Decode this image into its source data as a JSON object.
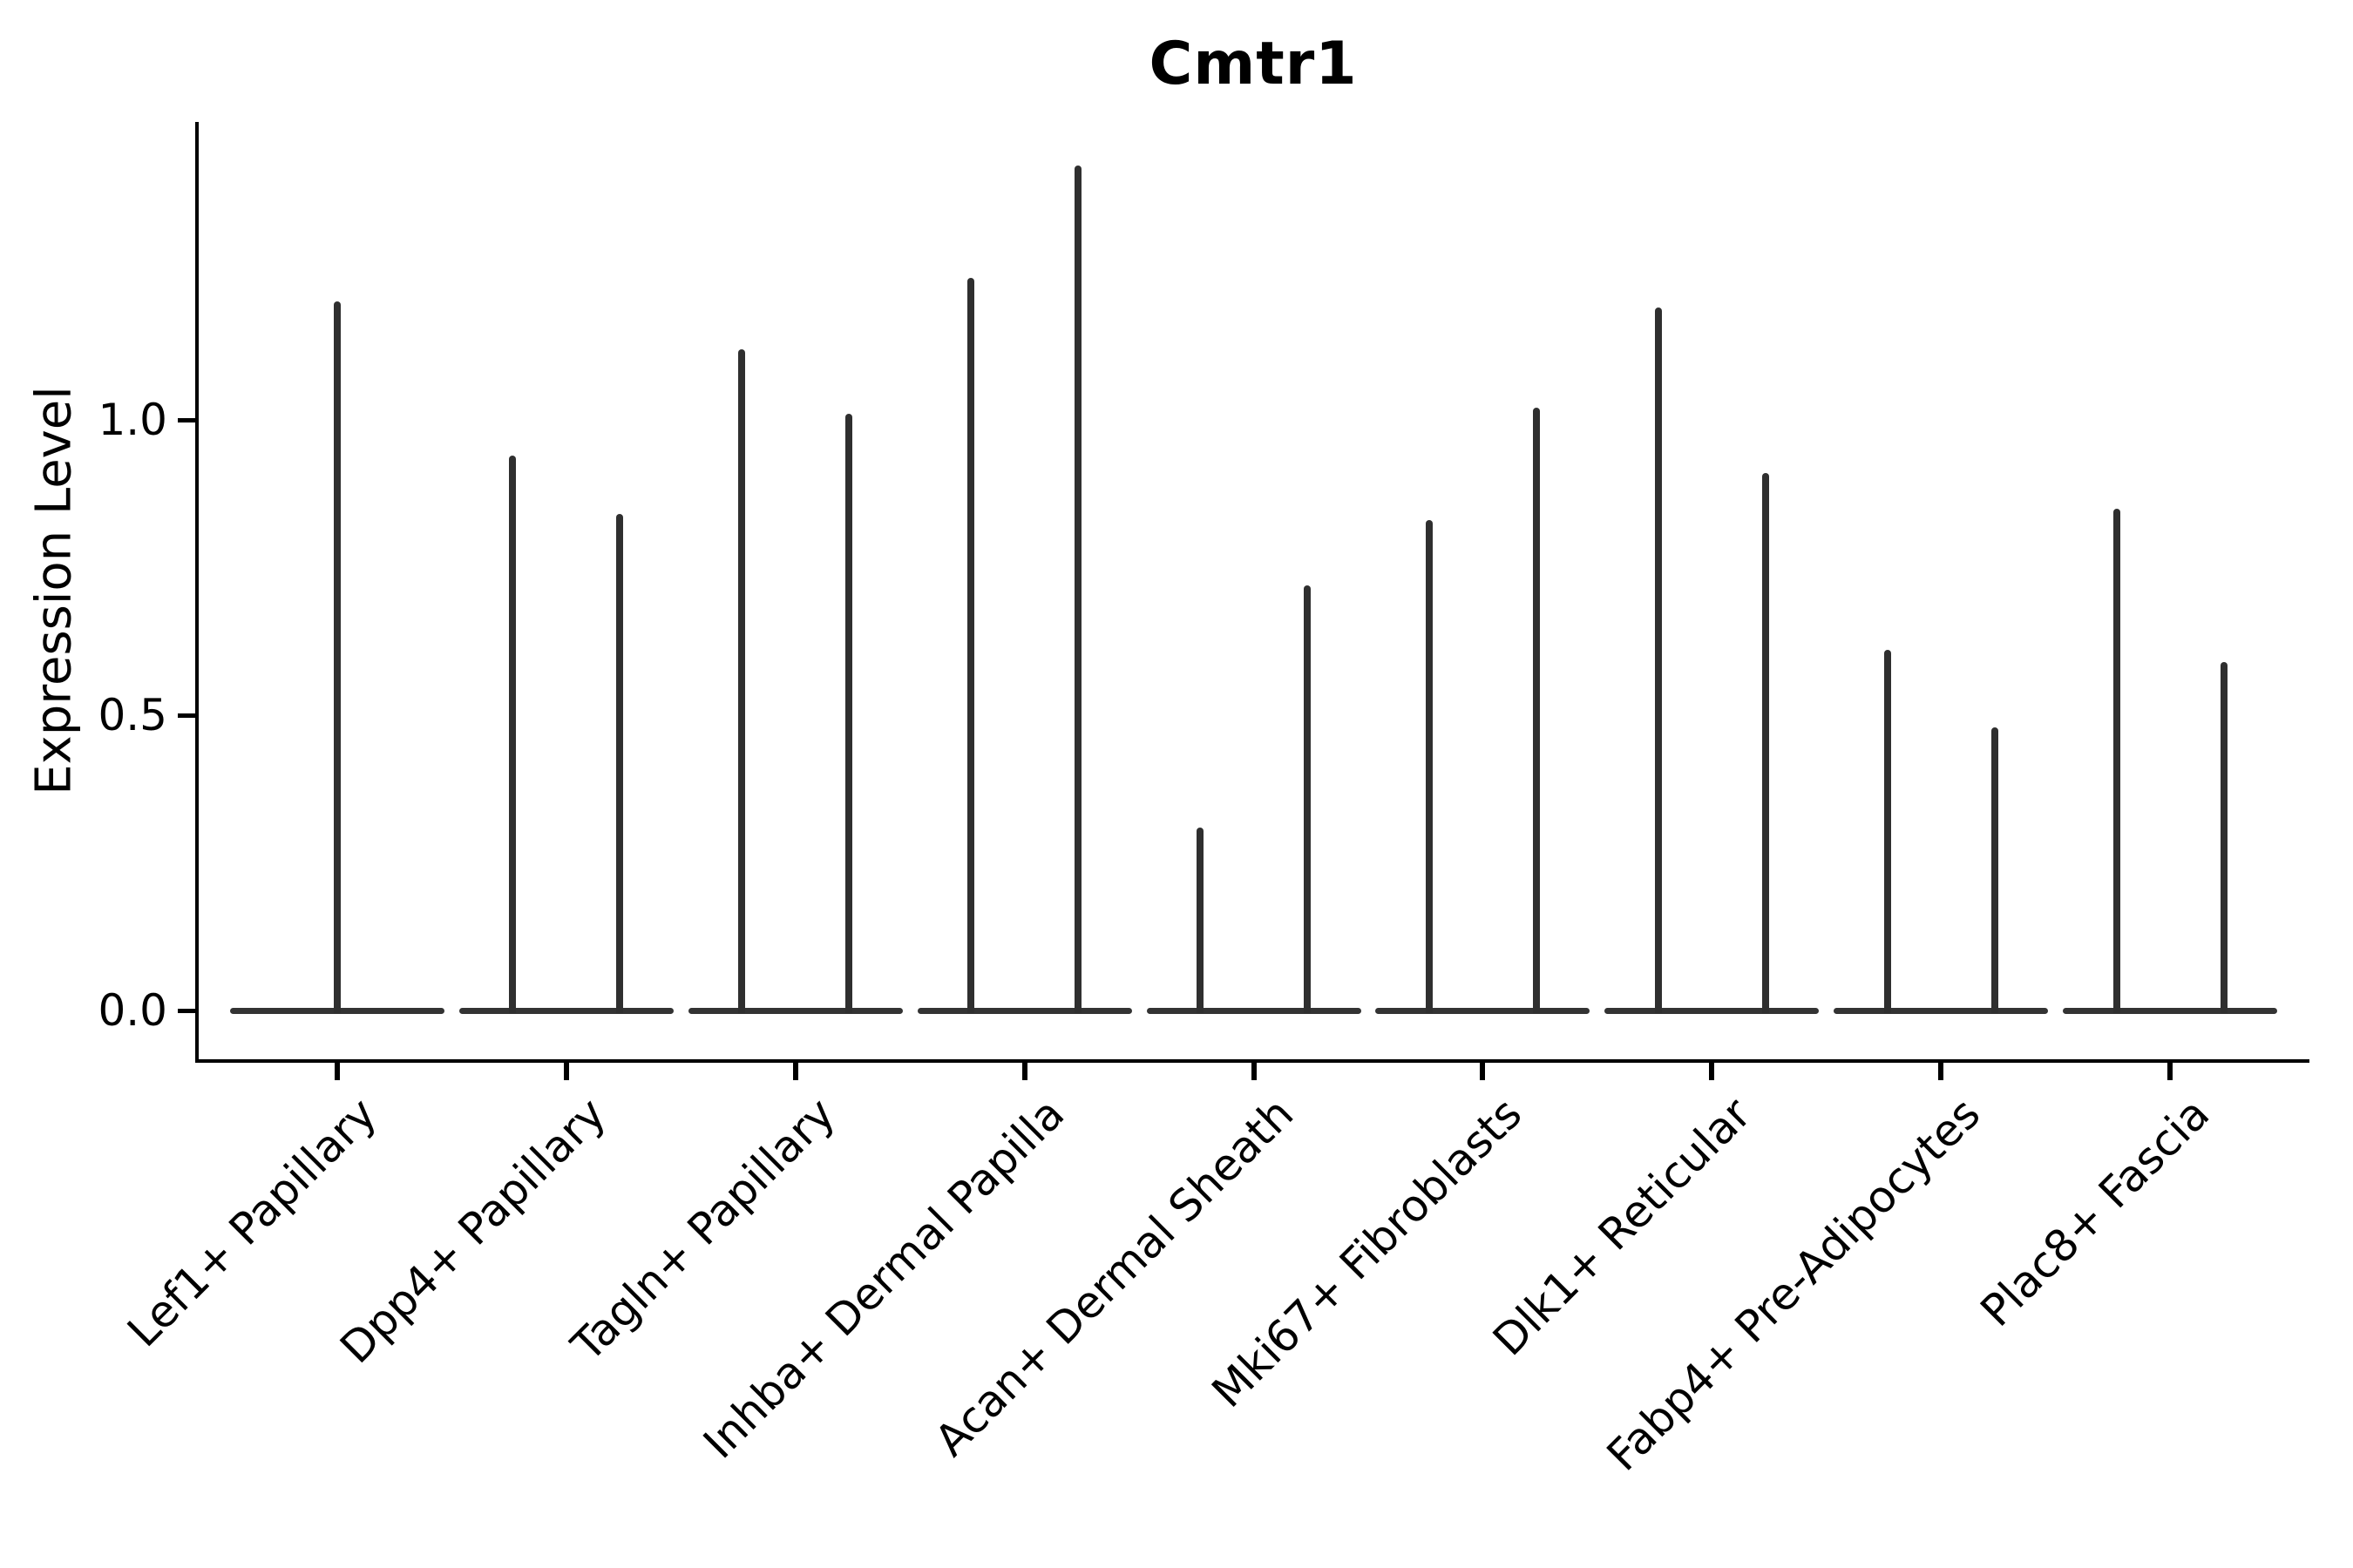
{
  "chart_data": {
    "type": "violin",
    "title": "Cmtr1",
    "ylabel": "Expression Level",
    "xlabel": "",
    "ytick_labels": [
      "0.0",
      "0.5",
      "1.0"
    ],
    "ylim": [
      -0.09,
      1.5
    ],
    "grid": false,
    "legend": "none",
    "violin_color": "#303030",
    "axis_color": "#000000",
    "background_color": "#ffffff",
    "categories": [
      "Lef1+ Papillary",
      "Dpp4+ Papillary",
      "Tagln+ Papillary",
      "Inhba+ Dermal Papilla",
      "Acan+ Dermal Sheath",
      "Mki67+ Fibroblasts",
      "Dlk1+ Reticular",
      "Fabp4+ Pre-Adipocytes",
      "Plac8+ Fascia"
    ],
    "groups": [
      {
        "label": "Lef1+ Papillary",
        "violins_max_expression": [
          1.2
        ]
      },
      {
        "label": "Dpp4+ Papillary",
        "violins_max_expression": [
          0.94,
          0.84
        ]
      },
      {
        "label": "Tagln+ Papillary",
        "violins_max_expression": [
          1.12,
          1.01
        ]
      },
      {
        "label": "Inhba+ Dermal Papilla",
        "violins_max_expression": [
          1.24,
          1.43
        ]
      },
      {
        "label": "Acan+ Dermal Sheath",
        "violins_max_expression": [
          0.31,
          0.72
        ]
      },
      {
        "label": "Mki67+ Fibroblasts",
        "violins_max_expression": [
          0.83,
          1.02
        ]
      },
      {
        "label": "Dlk1+ Reticular",
        "violins_max_expression": [
          1.19,
          0.91
        ]
      },
      {
        "label": "Fabp4+ Pre-Adipocytes",
        "violins_max_expression": [
          0.61,
          0.48
        ]
      },
      {
        "label": "Plac8+ Fascia",
        "violins_max_expression": [
          0.85,
          0.59
        ]
      }
    ],
    "distribution_note": "each violin is a near-zero-width density: mass concentrated at expression 0 (flat base) with a thin spike up to the listed maximum"
  }
}
